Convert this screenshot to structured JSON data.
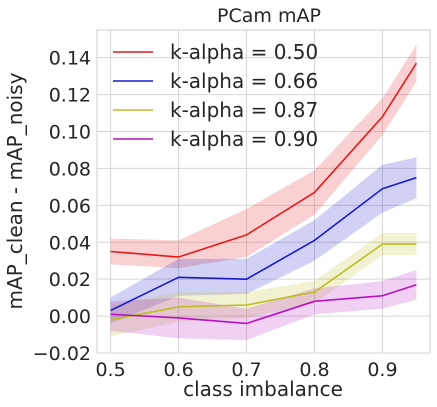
{
  "chart_data": {
    "type": "line",
    "title": "PCam mAP",
    "xlabel": "class imbalance",
    "ylabel": "mAP_clean - mAP_noisy",
    "xlim": [
      0.48,
      0.97
    ],
    "ylim": [
      -0.02,
      0.155
    ],
    "xticks": [
      0.5,
      0.6,
      0.7,
      0.8,
      0.9
    ],
    "xtick_labels": [
      "0.5",
      "0.6",
      "0.7",
      "0.8",
      "0.9"
    ],
    "yticks": [
      -0.02,
      0.0,
      0.02,
      0.04,
      0.06,
      0.08,
      0.1,
      0.12,
      0.14
    ],
    "ytick_labels": [
      "−0.02",
      "0.00",
      "0.02",
      "0.04",
      "0.06",
      "0.08",
      "0.10",
      "0.12",
      "0.14"
    ],
    "grid": true,
    "legend_position": "top-left",
    "x": [
      0.5,
      0.6,
      0.7,
      0.8,
      0.9,
      0.95
    ],
    "series": [
      {
        "name": "k-alpha = 0.50",
        "color": "#e41a1c",
        "values": [
          0.035,
          0.032,
          0.044,
          0.067,
          0.108,
          0.137
        ],
        "lower": [
          0.028,
          0.026,
          0.032,
          0.055,
          0.098,
          0.127
        ],
        "upper": [
          0.042,
          0.041,
          0.058,
          0.079,
          0.118,
          0.147
        ]
      },
      {
        "name": "k-alpha = 0.66",
        "color": "#1a1acc",
        "values": [
          0.003,
          0.021,
          0.02,
          0.041,
          0.069,
          0.075
        ],
        "lower": [
          -0.004,
          0.011,
          0.012,
          0.03,
          0.056,
          0.064
        ],
        "upper": [
          0.01,
          0.031,
          0.031,
          0.052,
          0.082,
          0.086
        ]
      },
      {
        "name": "k-alpha = 0.87",
        "color": "#bcbd22",
        "values": [
          -0.002,
          0.005,
          0.006,
          0.013,
          0.039,
          0.039
        ],
        "lower": [
          -0.011,
          -0.003,
          -0.001,
          0.007,
          0.033,
          0.033
        ],
        "upper": [
          0.006,
          0.013,
          0.013,
          0.019,
          0.045,
          0.045
        ]
      },
      {
        "name": "k-alpha = 0.90",
        "color": "#b413c4",
        "values": [
          0.001,
          -0.001,
          -0.004,
          0.008,
          0.011,
          0.017
        ],
        "lower": [
          -0.008,
          -0.012,
          -0.013,
          0.001,
          0.004,
          0.009
        ],
        "upper": [
          0.008,
          0.01,
          0.004,
          0.015,
          0.019,
          0.025
        ]
      }
    ]
  }
}
